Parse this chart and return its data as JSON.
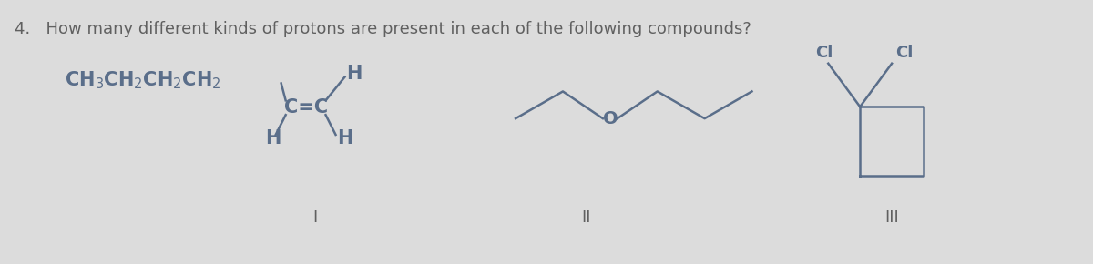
{
  "title": "4.   How many different kinds of protons are present in each of the following compounds?",
  "title_fontsize": 13.0,
  "title_color": "#606060",
  "bg_color": "#dcdcdc",
  "chem_color": "#5a6e8a",
  "label_color": "#606060",
  "label_I": "I",
  "label_II": "II",
  "label_III": "III",
  "figsize": [
    12.0,
    2.9
  ],
  "dpi": 100
}
